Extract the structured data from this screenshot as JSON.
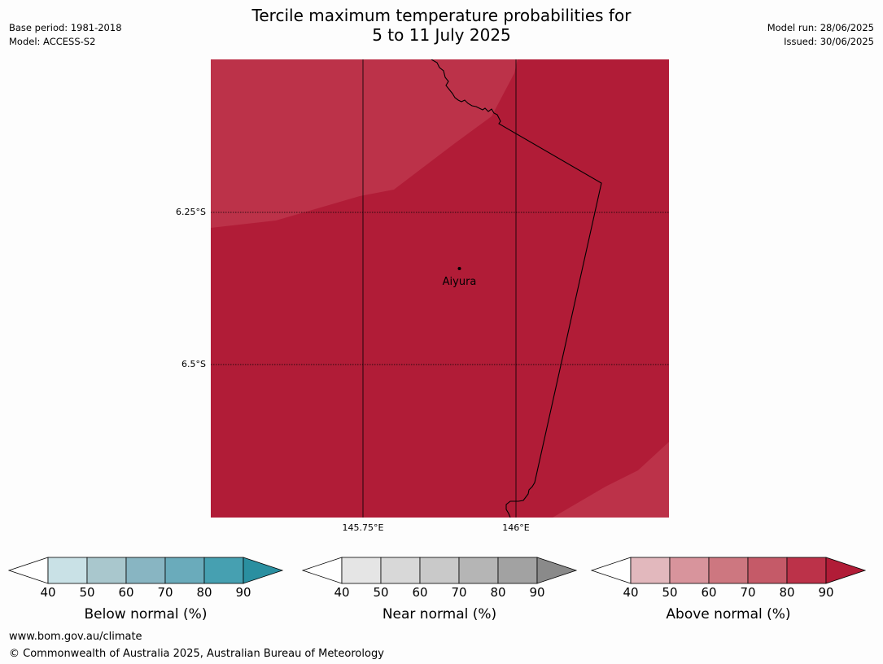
{
  "title_line1": "Tercile maximum temperature probabilities for",
  "title_line2": "5 to 11 July 2025",
  "meta_left": {
    "base_period": "Base period: 1981-2018",
    "model": "Model: ACCESS-S2"
  },
  "meta_right": {
    "model_run": "Model run: 28/06/2025",
    "issued": "Issued: 30/06/2025"
  },
  "map": {
    "lat_labels": [
      "6.25°S",
      "6.5°S"
    ],
    "lon_labels": [
      "145.75°E",
      "146°E"
    ],
    "place": "Aiyura",
    "fill_high": "#b11c37",
    "fill_mid": "#bc3249"
  },
  "colorbars": [
    {
      "label": "Below normal (%)",
      "ticks": [
        "40",
        "50",
        "60",
        "70",
        "80",
        "90"
      ],
      "colors": [
        "#ffffff",
        "#c9e1e6",
        "#a9c7cd",
        "#88b5c2",
        "#6aabbb",
        "#46a0b1",
        "#2a8fa0"
      ]
    },
    {
      "label": "Near normal (%)",
      "ticks": [
        "40",
        "50",
        "60",
        "70",
        "80",
        "90"
      ],
      "colors": [
        "#ffffff",
        "#e5e5e5",
        "#d8d8d8",
        "#c9c9c9",
        "#b5b5b5",
        "#a2a2a2",
        "#8a8a8a"
      ]
    },
    {
      "label": "Above normal (%)",
      "ticks": [
        "40",
        "50",
        "60",
        "70",
        "80",
        "90"
      ],
      "colors": [
        "#ffffff",
        "#e2b8bd",
        "#d8949c",
        "#cd7780",
        "#c55a68",
        "#bc3249",
        "#b11c37"
      ]
    }
  ],
  "footer": {
    "url": "www.bom.gov.au/climate",
    "copyright": "© Commonwealth of Australia 2025, Australian Bureau of Meteorology"
  }
}
